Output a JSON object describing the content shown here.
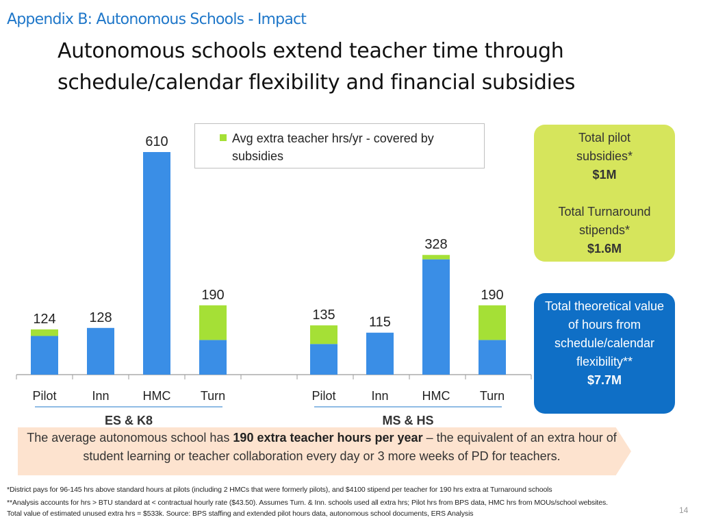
{
  "header": {
    "appendix": "Appendix B: Autonomous Schools - Impact",
    "title": "Autonomous schools extend teacher time through schedule/calendar flexibility and financial subsidies"
  },
  "legend": {
    "label": "Avg extra teacher hrs/yr - covered by subsidies"
  },
  "colors": {
    "bar_blue": "#3a8ee6",
    "bar_green": "#a5e036",
    "box_green": "#d6e55c",
    "box_blue": "#0f6fc6"
  },
  "chart_data": {
    "type": "bar",
    "stacked": true,
    "groups": [
      {
        "name": "ES & K8",
        "categories": [
          "Pilot",
          "Inn",
          "HMC",
          "Turn"
        ],
        "totals": [
          124,
          128,
          610,
          190
        ],
        "subsidy": [
          18,
          0,
          0,
          95
        ]
      },
      {
        "name": "MS & HS",
        "categories": [
          "Pilot",
          "Inn",
          "HMC",
          "Turn"
        ],
        "totals": [
          135,
          115,
          328,
          190
        ],
        "subsidy": [
          51,
          0,
          12,
          95
        ]
      }
    ],
    "ylim": [
      0,
      620
    ],
    "grid": false,
    "legend_position": "top"
  },
  "side_boxes": {
    "pilot_label": "Total pilot subsidies*",
    "pilot_value": "$1M",
    "turn_label": "Total Turnaround stipends*",
    "turn_value": "$1.6M",
    "theoretical_label": "Total theoretical value of hours from schedule/calendar flexibility**",
    "theoretical_value": "$7.7M"
  },
  "callout": {
    "pre": "The average autonomous school has ",
    "bold": "190 extra teacher hours per year",
    "post": " – the equivalent of an extra hour of student learning or teacher collaboration every day or 3 more weeks of PD for teachers."
  },
  "footnotes": {
    "line1": "*District pays for 96-145 hrs above standard hours at pilots (including 2 HMCs that were formerly pilots), and $4100 stipend per teacher for 190 hrs extra at Turnaround schools",
    "line2": "**Analysis accounts for hrs > BTU standard at < contractual hourly rate ($43.50). Assumes Turn. & Inn. schools used all extra hrs; Pilot hrs from BPS data, HMC hrs from MOUs/school websites.",
    "line3": "Total value of estimated unused extra hrs = $533k. Source: BPS staffing and extended pilot hours data, autonomous school documents, ERS Analysis"
  },
  "page_number": "14"
}
